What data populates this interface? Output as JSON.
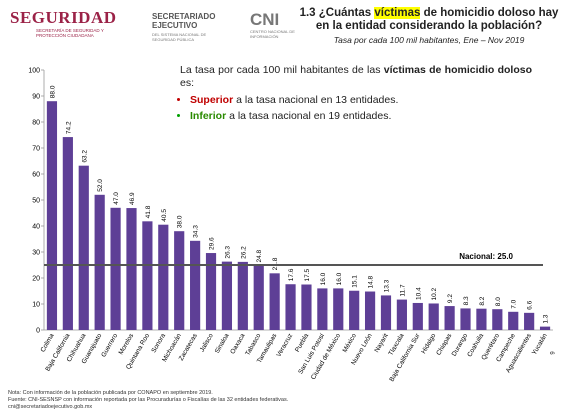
{
  "header": {
    "logo1": "SEGURIDAD",
    "logo1_sub": "SECRETARÍA DE SEGURIDAD Y PROTECCIÓN CIUDADANA",
    "logo2": "SECRETARIADO EJECUTIVO",
    "logo2_sub": "DEL SISTEMA NACIONAL DE SEGURIDAD PÚBLICA",
    "logo3": "CNI",
    "logo3_sub": "CENTRO NACIONAL DE INFORMACIÓN"
  },
  "chart_data": {
    "type": "bar",
    "title_parts": [
      "1.3 ¿Cuántas ",
      "víctimas",
      " de homicidio doloso hay en la entidad considerando la población?"
    ],
    "subtitle": "Tasa por cada 100 mil habitantes, Ene – Nov 2019",
    "categories": [
      "Colima",
      "Baja California",
      "Chihuahua",
      "Guanajuato",
      "Guerrero",
      "Morelos",
      "Quintana Roo",
      "Sonora",
      "Michoacán",
      "Zacatecas",
      "Jalisco",
      "Sinaloa",
      "Oaxaca",
      "Tabasco",
      "Tamaulipas",
      "Veracruz",
      "Puebla",
      "San Luis Potosí",
      "Ciudad de México",
      "México",
      "Nuevo León",
      "Nayarit",
      "Tlaxcala",
      "Baja California Sur",
      "Hidalgo",
      "Chiapas",
      "Durango",
      "Coahuila",
      "Querétaro",
      "Campeche",
      "Aguascalientes",
      "Yucatán"
    ],
    "values": [
      88.0,
      74.2,
      63.2,
      52.0,
      47.0,
      46.9,
      41.8,
      40.5,
      38.0,
      34.3,
      29.6,
      26.3,
      26.2,
      24.8,
      21.8,
      17.6,
      17.5,
      16.0,
      16.0,
      15.1,
      14.8,
      13.3,
      11.7,
      10.4,
      10.2,
      9.2,
      8.3,
      8.2,
      8.0,
      7.0,
      6.6,
      1.3
    ],
    "value_labels": [
      "88.0",
      "74.2",
      "63.2",
      "52.0",
      "47.0",
      "46.9",
      "41.8",
      "40.5",
      "38.0",
      "34.3",
      "29.6",
      "26.3",
      "26.2",
      "24.8",
      "21.8",
      "17.6",
      "17.5",
      "16.0",
      "16.0",
      "15.1",
      "14.8",
      "13.3",
      "11.7",
      "10.4",
      "10.2",
      "9.2",
      "8.3",
      "8.2",
      "8.0",
      "7.0",
      "6.6",
      "1.3"
    ],
    "color": "#5e3f96",
    "ylim": [
      0,
      100
    ],
    "yticks": [
      0,
      10,
      20,
      30,
      40,
      50,
      60,
      70,
      80,
      90,
      100
    ],
    "reference_line": {
      "value": 25.0,
      "label": "Nacional: 25.0",
      "color": "#555555"
    },
    "textbox": {
      "intro_parts": [
        "La tasa por cada 100 mil habitantes de las ",
        "víctimas de homicidio doloso",
        " es:"
      ],
      "bullets": [
        {
          "strong": "Superior",
          "text": " a la tasa nacional en 13 entidades."
        },
        {
          "strong": "Inferior",
          "text": " a la tasa nacional en 19 entidades."
        }
      ]
    }
  },
  "footer": {
    "lines": [
      "Nota: Con información de la población publicada por CONAPO en septiembre 2019.",
      "Fuente: CNI-SESNSP con información reportada por las Procuradurías o Fiscalías de las 32 entidades federativas.",
      "cni@secretariadoejecutivo.gob.mx"
    ],
    "page": "9"
  }
}
